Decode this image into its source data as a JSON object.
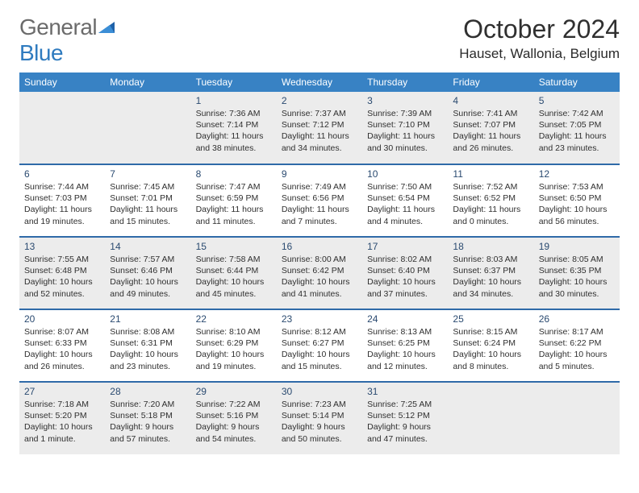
{
  "brand": {
    "general": "General",
    "blue": "Blue"
  },
  "title": "October 2024",
  "location": "Hauset, Wallonia, Belgium",
  "colors": {
    "header_bg": "#3882c4",
    "header_text": "#ffffff",
    "row_divider": "#2f6aa8",
    "shaded_bg": "#ececec",
    "text": "#2f2f2f",
    "brand_gray": "#6b6b6b",
    "brand_blue": "#2f7bbf"
  },
  "weekdays": [
    "Sunday",
    "Monday",
    "Tuesday",
    "Wednesday",
    "Thursday",
    "Friday",
    "Saturday"
  ],
  "weeks": [
    [
      null,
      null,
      {
        "n": "1",
        "sr": "Sunrise: 7:36 AM",
        "ss": "Sunset: 7:14 PM",
        "dl": "Daylight: 11 hours and 38 minutes."
      },
      {
        "n": "2",
        "sr": "Sunrise: 7:37 AM",
        "ss": "Sunset: 7:12 PM",
        "dl": "Daylight: 11 hours and 34 minutes."
      },
      {
        "n": "3",
        "sr": "Sunrise: 7:39 AM",
        "ss": "Sunset: 7:10 PM",
        "dl": "Daylight: 11 hours and 30 minutes."
      },
      {
        "n": "4",
        "sr": "Sunrise: 7:41 AM",
        "ss": "Sunset: 7:07 PM",
        "dl": "Daylight: 11 hours and 26 minutes."
      },
      {
        "n": "5",
        "sr": "Sunrise: 7:42 AM",
        "ss": "Sunset: 7:05 PM",
        "dl": "Daylight: 11 hours and 23 minutes."
      }
    ],
    [
      {
        "n": "6",
        "sr": "Sunrise: 7:44 AM",
        "ss": "Sunset: 7:03 PM",
        "dl": "Daylight: 11 hours and 19 minutes."
      },
      {
        "n": "7",
        "sr": "Sunrise: 7:45 AM",
        "ss": "Sunset: 7:01 PM",
        "dl": "Daylight: 11 hours and 15 minutes."
      },
      {
        "n": "8",
        "sr": "Sunrise: 7:47 AM",
        "ss": "Sunset: 6:59 PM",
        "dl": "Daylight: 11 hours and 11 minutes."
      },
      {
        "n": "9",
        "sr": "Sunrise: 7:49 AM",
        "ss": "Sunset: 6:56 PM",
        "dl": "Daylight: 11 hours and 7 minutes."
      },
      {
        "n": "10",
        "sr": "Sunrise: 7:50 AM",
        "ss": "Sunset: 6:54 PM",
        "dl": "Daylight: 11 hours and 4 minutes."
      },
      {
        "n": "11",
        "sr": "Sunrise: 7:52 AM",
        "ss": "Sunset: 6:52 PM",
        "dl": "Daylight: 11 hours and 0 minutes."
      },
      {
        "n": "12",
        "sr": "Sunrise: 7:53 AM",
        "ss": "Sunset: 6:50 PM",
        "dl": "Daylight: 10 hours and 56 minutes."
      }
    ],
    [
      {
        "n": "13",
        "sr": "Sunrise: 7:55 AM",
        "ss": "Sunset: 6:48 PM",
        "dl": "Daylight: 10 hours and 52 minutes."
      },
      {
        "n": "14",
        "sr": "Sunrise: 7:57 AM",
        "ss": "Sunset: 6:46 PM",
        "dl": "Daylight: 10 hours and 49 minutes."
      },
      {
        "n": "15",
        "sr": "Sunrise: 7:58 AM",
        "ss": "Sunset: 6:44 PM",
        "dl": "Daylight: 10 hours and 45 minutes."
      },
      {
        "n": "16",
        "sr": "Sunrise: 8:00 AM",
        "ss": "Sunset: 6:42 PM",
        "dl": "Daylight: 10 hours and 41 minutes."
      },
      {
        "n": "17",
        "sr": "Sunrise: 8:02 AM",
        "ss": "Sunset: 6:40 PM",
        "dl": "Daylight: 10 hours and 37 minutes."
      },
      {
        "n": "18",
        "sr": "Sunrise: 8:03 AM",
        "ss": "Sunset: 6:37 PM",
        "dl": "Daylight: 10 hours and 34 minutes."
      },
      {
        "n": "19",
        "sr": "Sunrise: 8:05 AM",
        "ss": "Sunset: 6:35 PM",
        "dl": "Daylight: 10 hours and 30 minutes."
      }
    ],
    [
      {
        "n": "20",
        "sr": "Sunrise: 8:07 AM",
        "ss": "Sunset: 6:33 PM",
        "dl": "Daylight: 10 hours and 26 minutes."
      },
      {
        "n": "21",
        "sr": "Sunrise: 8:08 AM",
        "ss": "Sunset: 6:31 PM",
        "dl": "Daylight: 10 hours and 23 minutes."
      },
      {
        "n": "22",
        "sr": "Sunrise: 8:10 AM",
        "ss": "Sunset: 6:29 PM",
        "dl": "Daylight: 10 hours and 19 minutes."
      },
      {
        "n": "23",
        "sr": "Sunrise: 8:12 AM",
        "ss": "Sunset: 6:27 PM",
        "dl": "Daylight: 10 hours and 15 minutes."
      },
      {
        "n": "24",
        "sr": "Sunrise: 8:13 AM",
        "ss": "Sunset: 6:25 PM",
        "dl": "Daylight: 10 hours and 12 minutes."
      },
      {
        "n": "25",
        "sr": "Sunrise: 8:15 AM",
        "ss": "Sunset: 6:24 PM",
        "dl": "Daylight: 10 hours and 8 minutes."
      },
      {
        "n": "26",
        "sr": "Sunrise: 8:17 AM",
        "ss": "Sunset: 6:22 PM",
        "dl": "Daylight: 10 hours and 5 minutes."
      }
    ],
    [
      {
        "n": "27",
        "sr": "Sunrise: 7:18 AM",
        "ss": "Sunset: 5:20 PM",
        "dl": "Daylight: 10 hours and 1 minute."
      },
      {
        "n": "28",
        "sr": "Sunrise: 7:20 AM",
        "ss": "Sunset: 5:18 PM",
        "dl": "Daylight: 9 hours and 57 minutes."
      },
      {
        "n": "29",
        "sr": "Sunrise: 7:22 AM",
        "ss": "Sunset: 5:16 PM",
        "dl": "Daylight: 9 hours and 54 minutes."
      },
      {
        "n": "30",
        "sr": "Sunrise: 7:23 AM",
        "ss": "Sunset: 5:14 PM",
        "dl": "Daylight: 9 hours and 50 minutes."
      },
      {
        "n": "31",
        "sr": "Sunrise: 7:25 AM",
        "ss": "Sunset: 5:12 PM",
        "dl": "Daylight: 9 hours and 47 minutes."
      },
      null,
      null
    ]
  ],
  "shaded_rows": [
    0,
    2,
    4
  ]
}
